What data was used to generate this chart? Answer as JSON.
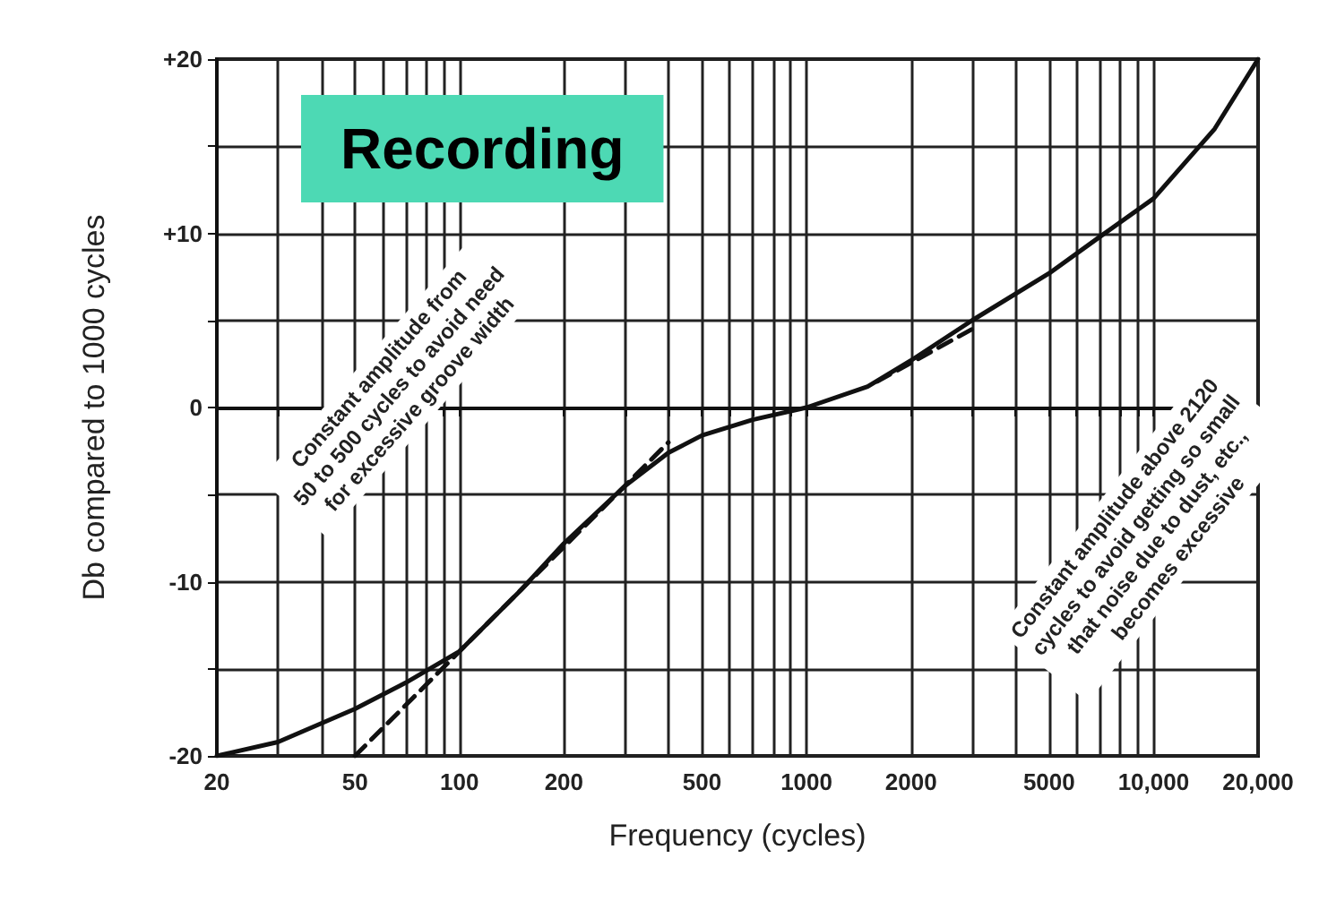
{
  "chart_data": {
    "type": "line",
    "title": "Recording",
    "xlabel": "Frequency (cycles)",
    "ylabel": "Db compared to 1000 cycles",
    "log": "x",
    "grid": true,
    "marker": "none",
    "line_style": "solid",
    "xlim": [
      20,
      20000
    ],
    "ylim": [
      -20,
      20
    ],
    "xticks": [
      20,
      {
        "value": 30,
        "label": null
      },
      {
        "value": 40,
        "label": null
      },
      50,
      {
        "value": 60,
        "label": null
      },
      {
        "value": 70,
        "label": null
      },
      {
        "value": 80,
        "label": null
      },
      {
        "value": 90,
        "label": null
      },
      100,
      200,
      {
        "value": 300,
        "label": null
      },
      {
        "value": 400,
        "label": null
      },
      500,
      {
        "value": 600,
        "label": null
      },
      {
        "value": 700,
        "label": null
      },
      {
        "value": 800,
        "label": null
      },
      {
        "value": 900,
        "label": null
      },
      1000,
      2000,
      {
        "value": 3000,
        "label": null
      },
      {
        "value": 4000,
        "label": null
      },
      5000,
      {
        "value": 6000,
        "label": null
      },
      {
        "value": 7000,
        "label": null
      },
      {
        "value": 8000,
        "label": null
      },
      {
        "value": 9000,
        "label": null
      },
      {
        "value": 10000,
        "label": "10,000"
      },
      {
        "value": 20000,
        "label": "20,000"
      }
    ],
    "yticks": [
      -20,
      {
        "value": -15,
        "label": null
      },
      -10,
      {
        "value": -5,
        "label": null
      },
      0,
      {
        "value": 5,
        "label": null
      },
      {
        "value": 10,
        "label": "+10"
      },
      {
        "value": 15,
        "label": null
      },
      {
        "value": 20,
        "label": "+20"
      }
    ],
    "series": [
      {
        "color": "#111111",
        "x": [
          20,
          30,
          50,
          70,
          100,
          150,
          200,
          300,
          400,
          500,
          700,
          1000,
          1500,
          2000,
          3000,
          5000,
          7000,
          10000,
          15000,
          20000
        ],
        "values": [
          -20,
          -19.2,
          -17.3,
          -15.8,
          -14,
          -10.5,
          -7.8,
          -4.5,
          -2.6,
          -1.6,
          -0.7,
          0,
          1.2,
          2.7,
          5,
          7.7,
          9.8,
          12,
          16,
          20
        ]
      },
      {
        "color": "#111111",
        "line_style": "dashed",
        "x": [
          50,
          100,
          200,
          400
        ],
        "values": [
          -20,
          -14,
          -8,
          -2
        ]
      },
      {
        "color": "#111111",
        "line_style": "dashed",
        "x": [
          1600,
          3000
        ],
        "values": [
          1.5,
          4.5
        ]
      }
    ],
    "annotations": [
      "Constant amplitude from\n50 to 500 cycles to avoid need\nfor excessive groove width",
      "Constant amplitude above 2120\ncycles to avoid getting so small\nthat noise due to dust, etc.,\nbecomes excessive"
    ]
  }
}
